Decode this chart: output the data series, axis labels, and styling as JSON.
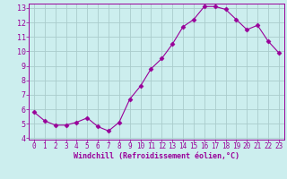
{
  "x": [
    0,
    1,
    2,
    3,
    4,
    5,
    6,
    7,
    8,
    9,
    10,
    11,
    12,
    13,
    14,
    15,
    16,
    17,
    18,
    19,
    20,
    21,
    22,
    23
  ],
  "y": [
    5.8,
    5.2,
    4.9,
    4.9,
    5.1,
    5.4,
    4.8,
    4.5,
    5.1,
    6.7,
    7.6,
    8.8,
    9.5,
    10.5,
    11.7,
    12.2,
    13.1,
    13.1,
    12.9,
    12.2,
    11.5,
    11.8,
    10.7,
    9.9
  ],
  "line_color": "#990099",
  "marker": "D",
  "marker_size": 2.5,
  "bg_color": "#cceeee",
  "grid_color": "#aacccc",
  "xlabel": "Windchill (Refroidissement éolien,°C)",
  "xlabel_color": "#990099",
  "tick_color": "#990099",
  "ylim": [
    4,
    13
  ],
  "xlim": [
    -0.5,
    23.5
  ],
  "yticks": [
    4,
    5,
    6,
    7,
    8,
    9,
    10,
    11,
    12,
    13
  ],
  "xticks": [
    0,
    1,
    2,
    3,
    4,
    5,
    6,
    7,
    8,
    9,
    10,
    11,
    12,
    13,
    14,
    15,
    16,
    17,
    18,
    19,
    20,
    21,
    22,
    23
  ],
  "tick_fontsize": 5.5,
  "xlabel_fontsize": 6.0
}
